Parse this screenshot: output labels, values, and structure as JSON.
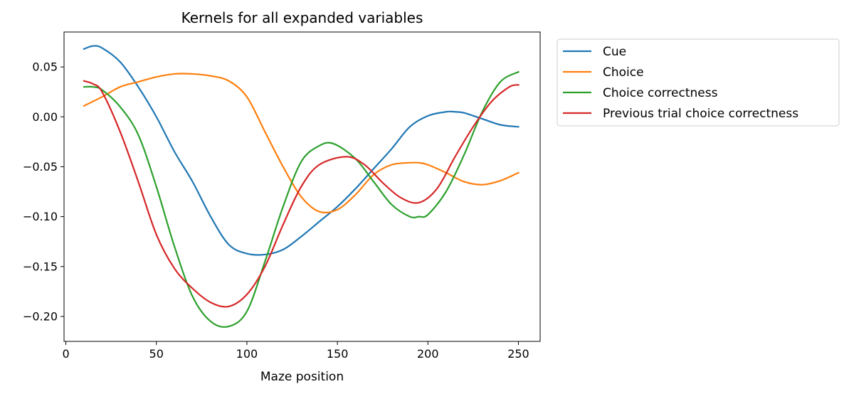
{
  "chart_data": {
    "type": "line",
    "title": "Kernels for all expanded variables",
    "xlabel": "Maze position",
    "ylabel": "",
    "xlim": [
      -1,
      262
    ],
    "ylim": [
      -0.225,
      0.085
    ],
    "xticks": [
      0,
      50,
      100,
      150,
      200,
      250
    ],
    "yticks": [
      0.05,
      0.0,
      -0.05,
      -0.1,
      -0.15,
      -0.2
    ],
    "ytick_labels": [
      "0.05",
      "0.00",
      "−0.05",
      "−0.10",
      "−0.15",
      "−0.20"
    ],
    "grid": false,
    "legend_position": "outside-top-right",
    "series": [
      {
        "name": "Cue",
        "color": "#1f77b4",
        "x": [
          10,
          15,
          20,
          30,
          40,
          50,
          60,
          70,
          80,
          90,
          100,
          110,
          120,
          130,
          140,
          150,
          160,
          170,
          180,
          190,
          200,
          210,
          215,
          220,
          230,
          240,
          250
        ],
        "y": [
          0.068,
          0.071,
          0.069,
          0.055,
          0.03,
          0.0,
          -0.035,
          -0.065,
          -0.1,
          -0.128,
          -0.137,
          -0.138,
          -0.133,
          -0.12,
          -0.105,
          -0.09,
          -0.072,
          -0.052,
          -0.032,
          -0.01,
          0.001,
          0.005,
          0.005,
          0.004,
          -0.002,
          -0.008,
          -0.01
        ]
      },
      {
        "name": "Choice",
        "color": "#ff7f0e",
        "x": [
          10,
          20,
          30,
          40,
          50,
          60,
          70,
          80,
          90,
          100,
          110,
          120,
          130,
          140,
          150,
          160,
          170,
          180,
          190,
          195,
          200,
          210,
          220,
          230,
          240,
          250
        ],
        "y": [
          0.011,
          0.02,
          0.03,
          0.035,
          0.04,
          0.043,
          0.043,
          0.041,
          0.036,
          0.02,
          -0.015,
          -0.05,
          -0.08,
          -0.095,
          -0.093,
          -0.078,
          -0.058,
          -0.048,
          -0.046,
          -0.046,
          -0.048,
          -0.056,
          -0.065,
          -0.068,
          -0.064,
          -0.056
        ]
      },
      {
        "name": "Choice correctness",
        "color": "#2ca02c",
        "x": [
          10,
          15,
          20,
          30,
          40,
          50,
          60,
          70,
          80,
          90,
          100,
          110,
          120,
          130,
          140,
          148,
          160,
          170,
          180,
          190,
          195,
          200,
          210,
          220,
          230,
          240,
          250
        ],
        "y": [
          0.03,
          0.03,
          0.027,
          0.01,
          -0.018,
          -0.07,
          -0.13,
          -0.18,
          -0.205,
          -0.21,
          -0.195,
          -0.145,
          -0.09,
          -0.045,
          -0.029,
          -0.027,
          -0.042,
          -0.065,
          -0.088,
          -0.1,
          -0.1,
          -0.098,
          -0.075,
          -0.038,
          0.005,
          0.035,
          0.045
        ]
      },
      {
        "name": "Previous trial choice correctness",
        "color": "#d62728",
        "x": [
          10,
          15,
          20,
          30,
          40,
          50,
          60,
          70,
          80,
          90,
          100,
          110,
          120,
          130,
          140,
          155,
          165,
          175,
          185,
          195,
          205,
          215,
          225,
          235,
          245,
          250
        ],
        "y": [
          0.036,
          0.033,
          0.025,
          -0.015,
          -0.065,
          -0.118,
          -0.152,
          -0.172,
          -0.186,
          -0.19,
          -0.178,
          -0.15,
          -0.108,
          -0.07,
          -0.048,
          -0.04,
          -0.048,
          -0.066,
          -0.081,
          -0.086,
          -0.072,
          -0.04,
          -0.01,
          0.015,
          0.03,
          0.032
        ]
      }
    ]
  }
}
